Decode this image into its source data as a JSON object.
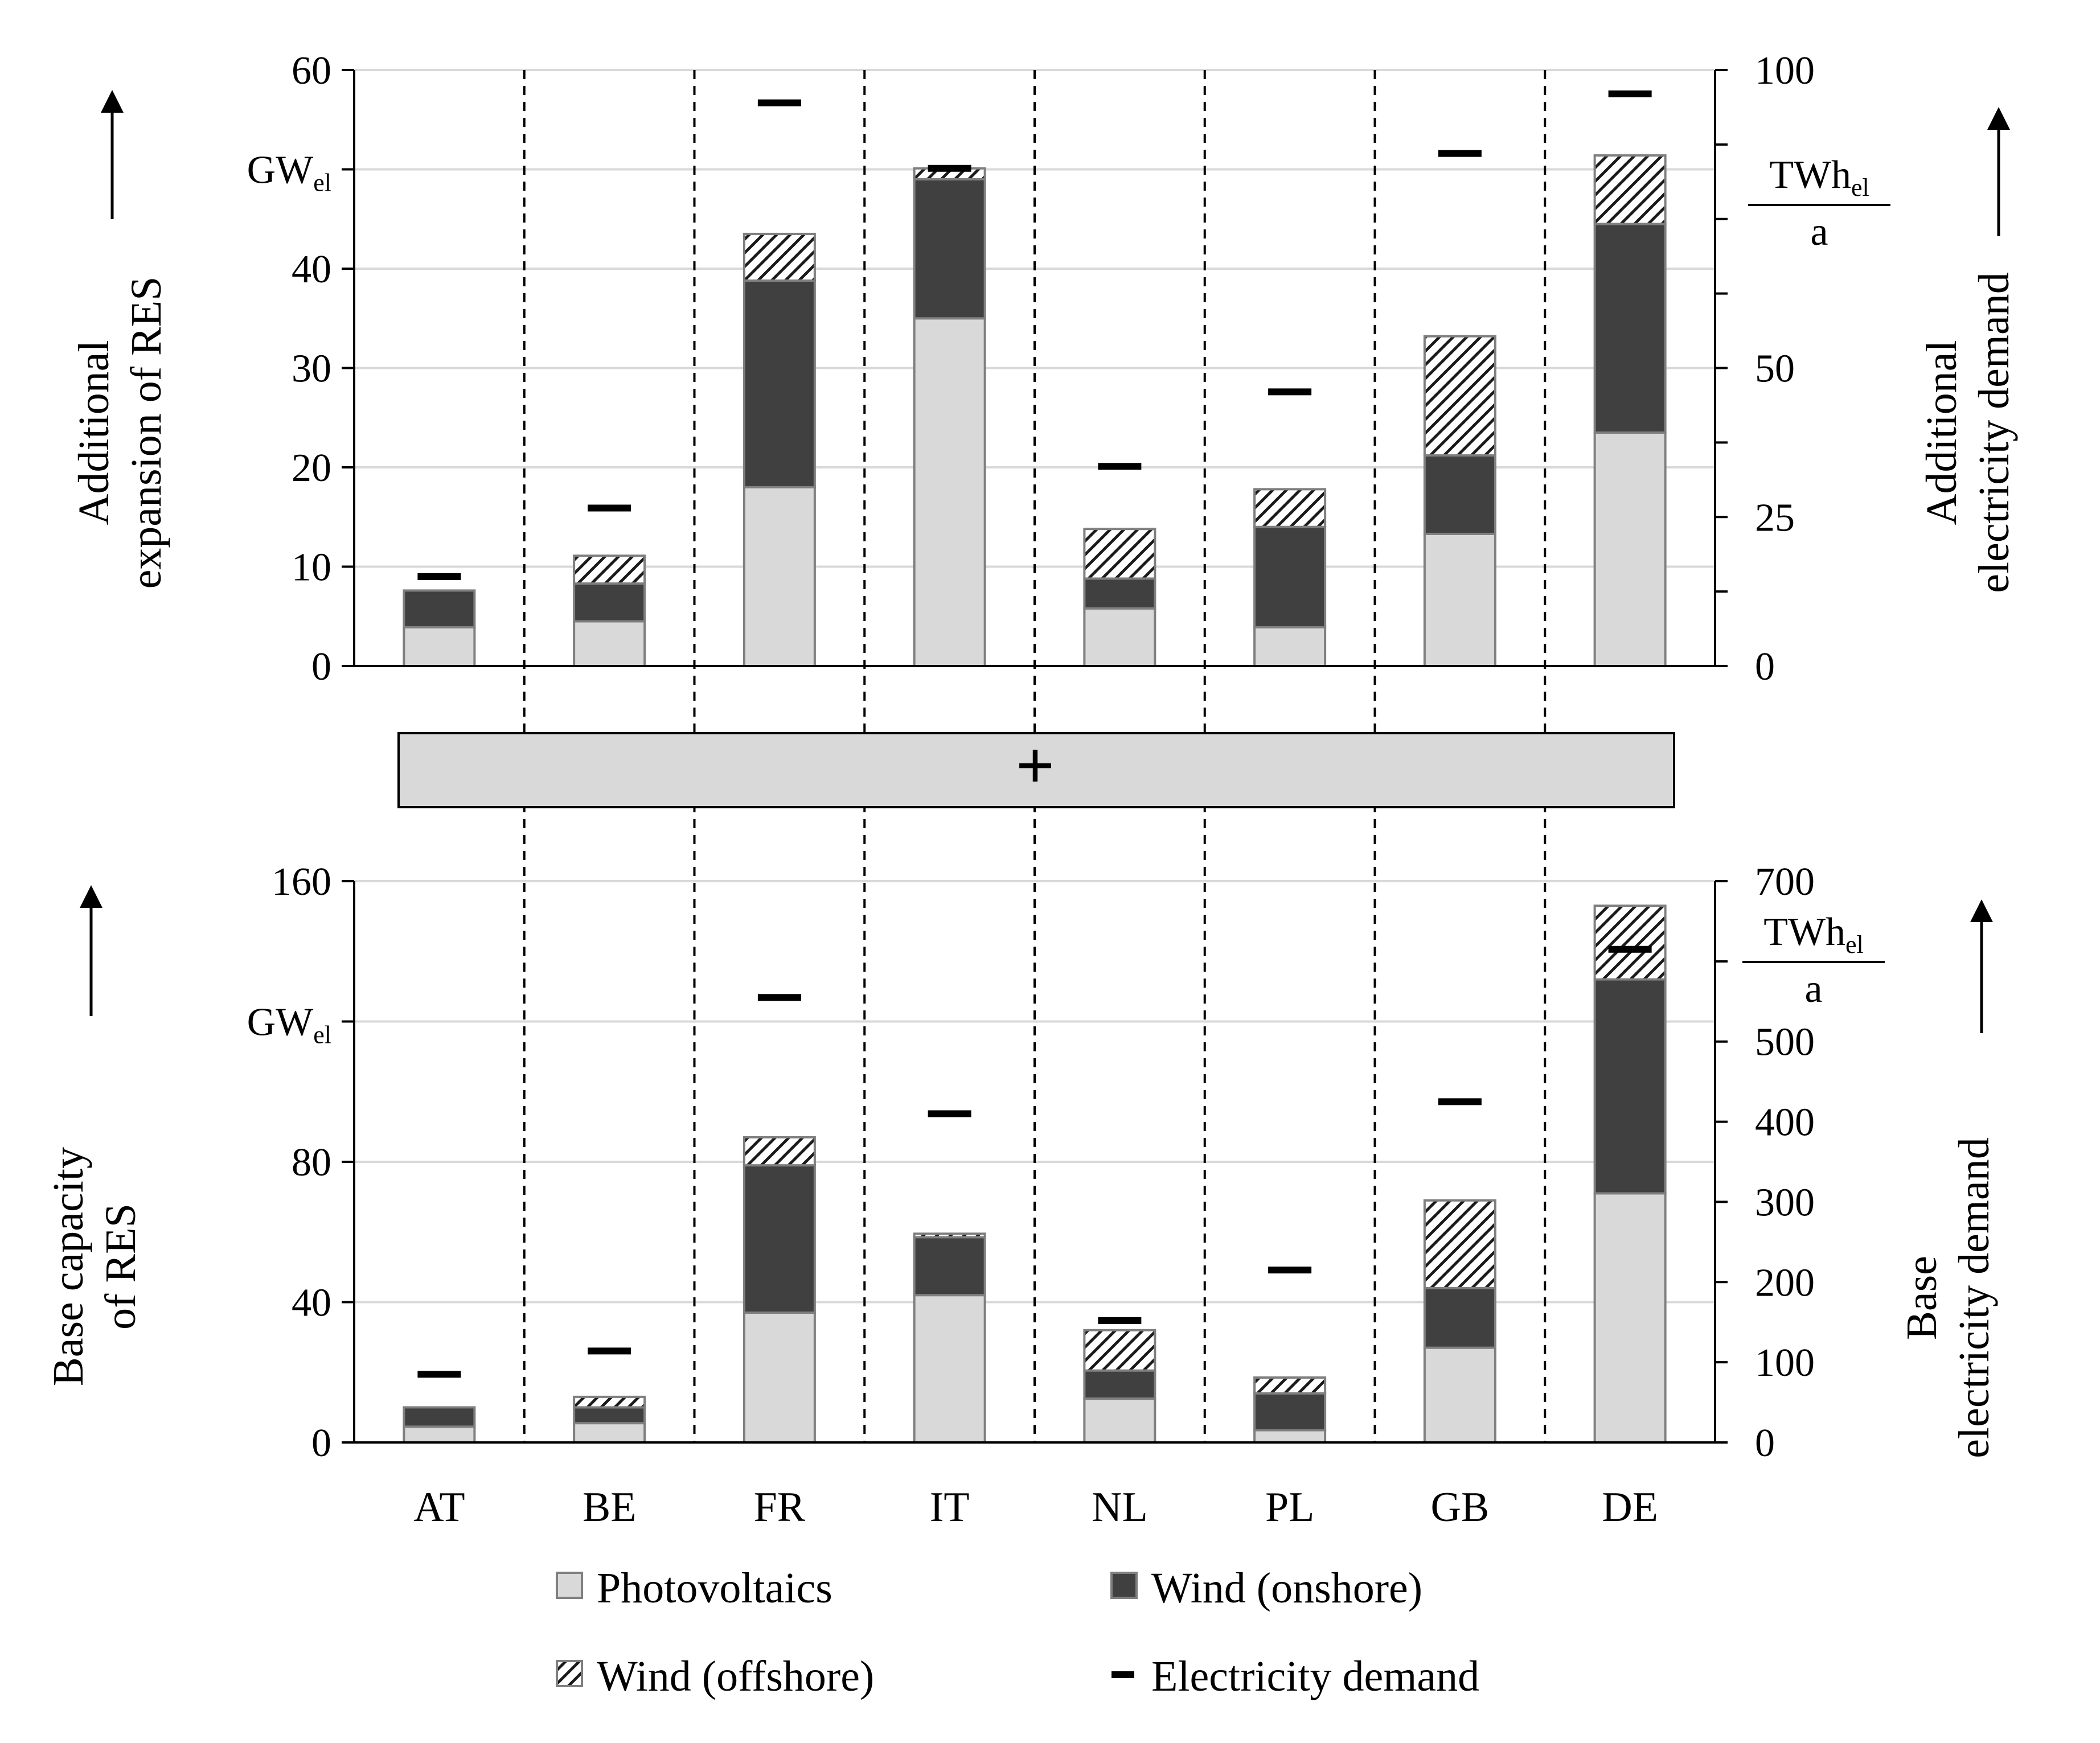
{
  "chart_data": [
    {
      "type": "bar",
      "stacked": true,
      "title": "",
      "ylabel_lines": [
        "Additional",
        "expansion of RES"
      ],
      "y_unit": "GW",
      "y_unit_sub": "el",
      "ylim": [
        0,
        60
      ],
      "yticks": [
        "0",
        "10",
        "20",
        "30",
        "40",
        "60"
      ],
      "y2label_lines": [
        "Additional",
        "electricity demand"
      ],
      "y2_unit": "TWh",
      "y2_unit_sub": "el",
      "y2_unit_den": "a",
      "y2lim": [
        0,
        100
      ],
      "y2ticks": [
        "0",
        "25",
        "50",
        "100"
      ],
      "categories": [
        "AT",
        "BE",
        "FR",
        "IT",
        "NL",
        "PL",
        "GB",
        "DE"
      ],
      "series": [
        {
          "name": "Photovoltaics",
          "values": [
            3.9,
            4.5,
            18,
            35,
            5.8,
            3.9,
            13.3,
            23.5
          ]
        },
        {
          "name": "Wind (onshore)",
          "values": [
            3.7,
            3.8,
            20.8,
            14,
            3.0,
            10.1,
            7.9,
            21
          ]
        },
        {
          "name": "Wind (offshore)",
          "values": [
            0,
            2.8,
            4.7,
            1.1,
            5.0,
            3.8,
            12.0,
            6.9
          ]
        }
      ],
      "demand": [
        15,
        26.5,
        94.5,
        83.5,
        33.5,
        46,
        86,
        96
      ]
    },
    {
      "type": "bar",
      "stacked": true,
      "title": "",
      "ylabel_lines": [
        "Base capacity",
        "of RES"
      ],
      "y_unit": "GW",
      "y_unit_sub": "el",
      "ylim": [
        0,
        160
      ],
      "yticks": [
        "0",
        "40",
        "80",
        "160"
      ],
      "y2label_lines": [
        "Base",
        "electricity demand"
      ],
      "y2_unit": "TWh",
      "y2_unit_sub": "el",
      "y2_unit_den": "a",
      "y2lim": [
        0,
        700
      ],
      "y2ticks": [
        "0",
        "100",
        "200",
        "300",
        "400",
        "500",
        "700"
      ],
      "categories": [
        "AT",
        "BE",
        "FR",
        "IT",
        "NL",
        "PL",
        "GB",
        "DE"
      ],
      "series": [
        {
          "name": "Photovoltaics",
          "values": [
            4.5,
            5.5,
            37,
            42,
            12.5,
            3.5,
            27,
            71
          ]
        },
        {
          "name": "Wind (onshore)",
          "values": [
            5.5,
            4.5,
            42,
            16.5,
            8.0,
            10.5,
            17,
            61
          ]
        },
        {
          "name": "Wind (offshore)",
          "values": [
            0,
            3,
            8,
            1,
            11.5,
            4.5,
            25,
            21
          ]
        }
      ],
      "demand": [
        85,
        114,
        555,
        410,
        152,
        215,
        425,
        615
      ]
    }
  ],
  "separator_symbol": "+",
  "legend": [
    {
      "key": "photovoltaics",
      "label": "Photovoltaics"
    },
    {
      "key": "wind-onshore",
      "label": "Wind (onshore)"
    },
    {
      "key": "wind-offshore",
      "label": "Wind (offshore)"
    },
    {
      "key": "electricity-demand",
      "label": "Electricity demand"
    }
  ],
  "colors": {
    "photovoltaics": "#d9d9d9",
    "wind_onshore": "#404040",
    "offshore_hatch": "#1a1a1a",
    "bar_stroke": "#7f7f7f",
    "gridline": "#d9d9d9",
    "separator_fill": "#d9d9d9"
  }
}
